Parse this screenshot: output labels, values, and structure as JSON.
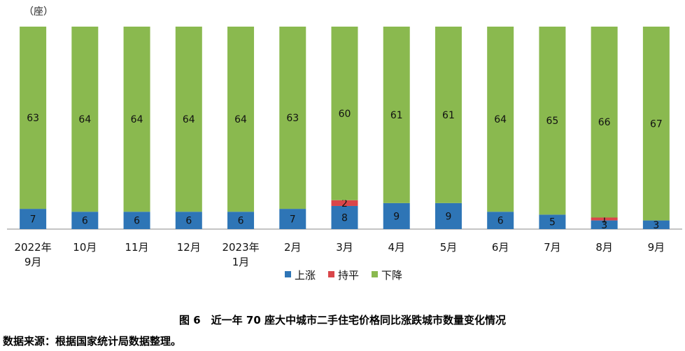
{
  "chart_data": {
    "type": "bar",
    "stacked": true,
    "unit": "（座）",
    "categories": [
      "2022年\n9月",
      "10月",
      "11月",
      "12月",
      "2023年\n1月",
      "2月",
      "3月",
      "4月",
      "5月",
      "6月",
      "7月",
      "8月",
      "9月"
    ],
    "series": [
      {
        "name": "上涨",
        "color": "#2e75b6",
        "values": [
          7,
          6,
          6,
          6,
          6,
          7,
          8,
          9,
          9,
          6,
          5,
          3,
          3
        ]
      },
      {
        "name": "持平",
        "color": "#d9464a",
        "values": [
          0,
          0,
          0,
          0,
          0,
          0,
          2,
          0,
          0,
          0,
          0,
          1,
          0
        ]
      },
      {
        "name": "下降",
        "color": "#8ab94f",
        "values": [
          63,
          64,
          64,
          64,
          64,
          63,
          60,
          61,
          61,
          64,
          65,
          66,
          67
        ]
      }
    ],
    "ylim": [
      0,
      70
    ],
    "legend_position": "bottom"
  },
  "caption": "图 6　近一年 70 座大中城市二手住宅价格同比涨跌城市数量变化情况",
  "source": "数据来源：根据国家统计局数据整理。"
}
